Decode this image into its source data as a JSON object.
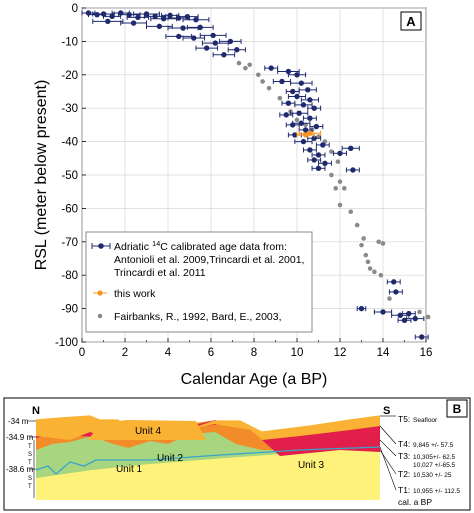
{
  "chart_data": [
    {
      "type": "scatter",
      "panel_label": "A",
      "xlabel": "Calendar Age (a BP)",
      "ylabel": "RSL (meter below present)",
      "xlim": [
        0,
        16
      ],
      "ylim": [
        -100,
        0
      ],
      "xticks": [
        0,
        2,
        4,
        6,
        8,
        10,
        12,
        14,
        16
      ],
      "yticks": [
        0,
        -10,
        -20,
        -30,
        -40,
        -50,
        -60,
        -70,
        -80,
        -90,
        -100
      ],
      "grid": true,
      "legend_position": "lower-left",
      "series": [
        {
          "name": "Adriatic 14C calibrated age data from:",
          "name_parts": [
            "Adriatic ",
            "14",
            "C calibrated age data from:"
          ],
          "name_lines": [
            "Antonioli et al. 2009,Trincardi et al. 2001,",
            "Trincardi et al. 2011"
          ],
          "color": "#1f2a6e",
          "marker": "circle-errorbar",
          "points": [
            {
              "x": 0.3,
              "y": -1.5,
              "xerr": 0.3
            },
            {
              "x": 0.7,
              "y": -2.0,
              "xerr": 0.4
            },
            {
              "x": 1.0,
              "y": -1.8,
              "xerr": 0.5
            },
            {
              "x": 1.4,
              "y": -2.5,
              "xerr": 0.4
            },
            {
              "x": 1.8,
              "y": -1.5,
              "xerr": 0.4
            },
            {
              "x": 2.2,
              "y": -2.0,
              "xerr": 0.5
            },
            {
              "x": 2.6,
              "y": -2.8,
              "xerr": 0.5
            },
            {
              "x": 3.0,
              "y": -1.8,
              "xerr": 0.6
            },
            {
              "x": 3.4,
              "y": -2.5,
              "xerr": 0.5
            },
            {
              "x": 3.8,
              "y": -3.2,
              "xerr": 0.6
            },
            {
              "x": 4.1,
              "y": -2.2,
              "xerr": 0.4
            },
            {
              "x": 4.5,
              "y": -3.0,
              "xerr": 0.5
            },
            {
              "x": 4.9,
              "y": -2.6,
              "xerr": 0.5
            },
            {
              "x": 5.3,
              "y": -3.5,
              "xerr": 0.6
            },
            {
              "x": 1.2,
              "y": -4.0,
              "xerr": 0.7
            },
            {
              "x": 2.4,
              "y": -4.5,
              "xerr": 0.6
            },
            {
              "x": 3.6,
              "y": -5.5,
              "xerr": 0.6
            },
            {
              "x": 4.7,
              "y": -6.0,
              "xerr": 0.7
            },
            {
              "x": 5.5,
              "y": -5.8,
              "xerr": 0.6
            },
            {
              "x": 4.5,
              "y": -8.5,
              "xerr": 0.6
            },
            {
              "x": 5.2,
              "y": -9.0,
              "xerr": 0.5
            },
            {
              "x": 6.1,
              "y": -8.2,
              "xerr": 0.6
            },
            {
              "x": 6.2,
              "y": -10.5,
              "xerr": 0.6
            },
            {
              "x": 6.9,
              "y": -10.0,
              "xerr": 0.5
            },
            {
              "x": 5.8,
              "y": -12.0,
              "xerr": 0.5
            },
            {
              "x": 7.2,
              "y": -12.5,
              "xerr": 0.4
            },
            {
              "x": 6.6,
              "y": -14.0,
              "xerr": 0.5
            },
            {
              "x": 8.8,
              "y": -18.0,
              "xerr": 0.3
            },
            {
              "x": 9.6,
              "y": -19.0,
              "xerr": 0.5
            },
            {
              "x": 10.0,
              "y": -20.0,
              "xerr": 0.4
            },
            {
              "x": 9.3,
              "y": -22.0,
              "xerr": 0.4
            },
            {
              "x": 10.2,
              "y": -22.5,
              "xerr": 0.5
            },
            {
              "x": 10.5,
              "y": -24.5,
              "xerr": 0.4
            },
            {
              "x": 9.8,
              "y": -25.0,
              "xerr": 0.3
            },
            {
              "x": 10.0,
              "y": -26.5,
              "xerr": 0.4
            },
            {
              "x": 10.6,
              "y": -27.5,
              "xerr": 0.4
            },
            {
              "x": 9.6,
              "y": -28.5,
              "xerr": 0.3
            },
            {
              "x": 10.3,
              "y": -29.0,
              "xerr": 0.4
            },
            {
              "x": 10.8,
              "y": -30.0,
              "xerr": 0.3
            },
            {
              "x": 10.1,
              "y": -31.5,
              "xerr": 0.4
            },
            {
              "x": 9.5,
              "y": -32.0,
              "xerr": 0.3
            },
            {
              "x": 10.6,
              "y": -33.0,
              "xerr": 0.3
            },
            {
              "x": 10.2,
              "y": -34.5,
              "xerr": 0.4
            },
            {
              "x": 9.8,
              "y": -35.0,
              "xerr": 0.3
            },
            {
              "x": 10.9,
              "y": -35.5,
              "xerr": 0.3
            },
            {
              "x": 10.4,
              "y": -36.5,
              "xerr": 0.3
            },
            {
              "x": 9.9,
              "y": -38.0,
              "xerr": 0.3
            },
            {
              "x": 10.8,
              "y": -39.0,
              "xerr": 0.3
            },
            {
              "x": 10.3,
              "y": -40.0,
              "xerr": 0.4
            },
            {
              "x": 11.2,
              "y": -41.0,
              "xerr": 0.3
            },
            {
              "x": 10.6,
              "y": -42.5,
              "xerr": 0.3
            },
            {
              "x": 12.5,
              "y": -42.0,
              "xerr": 0.4
            },
            {
              "x": 11.0,
              "y": -44.0,
              "xerr": 0.3
            },
            {
              "x": 12.0,
              "y": -43.5,
              "xerr": 0.3
            },
            {
              "x": 10.8,
              "y": -45.5,
              "xerr": 0.3
            },
            {
              "x": 11.3,
              "y": -46.5,
              "xerr": 0.3
            },
            {
              "x": 11.0,
              "y": -48.0,
              "xerr": 0.3
            },
            {
              "x": 12.6,
              "y": -48.5,
              "xerr": 0.3
            },
            {
              "x": 13.0,
              "y": -90.0,
              "xerr": 0.2
            },
            {
              "x": 14.5,
              "y": -82.0,
              "xerr": 0.3
            },
            {
              "x": 14.6,
              "y": -85.0,
              "xerr": 0.3
            },
            {
              "x": 14.0,
              "y": -91.0,
              "xerr": 0.4
            },
            {
              "x": 14.8,
              "y": -92.0,
              "xerr": 0.4
            },
            {
              "x": 15.2,
              "y": -91.5,
              "xerr": 0.3
            },
            {
              "x": 15.5,
              "y": -93.0,
              "xerr": 0.4
            },
            {
              "x": 15.0,
              "y": -93.5,
              "xerr": 0.3
            },
            {
              "x": 15.8,
              "y": -98.5,
              "xerr": 0.3
            }
          ]
        },
        {
          "name": "this work",
          "color": "#f7941d",
          "marker": "circle-errorbar",
          "points": [
            {
              "x": 10.6,
              "y": -37.5,
              "xerr": 0.5
            },
            {
              "x": 10.4,
              "y": -38.0,
              "xerr": 0.4
            }
          ]
        },
        {
          "name": "Fairbanks, R., 1992, Bard, E., 2003,",
          "color": "#8a8a8a",
          "marker": "dot",
          "points": [
            {
              "x": 7.8,
              "y": -17.0
            },
            {
              "x": 7.6,
              "y": -18.0
            },
            {
              "x": 7.3,
              "y": -16.5
            },
            {
              "x": 8.2,
              "y": -20.0
            },
            {
              "x": 8.4,
              "y": -22.0
            },
            {
              "x": 8.7,
              "y": -24.0
            },
            {
              "x": 9.2,
              "y": -27.0
            },
            {
              "x": 9.7,
              "y": -31.0
            },
            {
              "x": 10.0,
              "y": -33.5
            },
            {
              "x": 10.4,
              "y": -35.0
            },
            {
              "x": 10.7,
              "y": -36.5
            },
            {
              "x": 11.0,
              "y": -38.5
            },
            {
              "x": 11.3,
              "y": -40.0
            },
            {
              "x": 11.6,
              "y": -43.0
            },
            {
              "x": 11.9,
              "y": -46.0
            },
            {
              "x": 11.6,
              "y": -50.0
            },
            {
              "x": 12.0,
              "y": -52.0
            },
            {
              "x": 11.8,
              "y": -54.0
            },
            {
              "x": 12.2,
              "y": -54.0
            },
            {
              "x": 12.0,
              "y": -59.0
            },
            {
              "x": 12.5,
              "y": -61.0
            },
            {
              "x": 12.8,
              "y": -65.0
            },
            {
              "x": 13.1,
              "y": -69.0
            },
            {
              "x": 13.0,
              "y": -71.0
            },
            {
              "x": 13.2,
              "y": -74.0
            },
            {
              "x": 13.3,
              "y": -76.0
            },
            {
              "x": 13.4,
              "y": -78.0
            },
            {
              "x": 13.6,
              "y": -79.0
            },
            {
              "x": 13.8,
              "y": -70.0
            },
            {
              "x": 14.0,
              "y": -70.5
            },
            {
              "x": 13.9,
              "y": -80.0
            },
            {
              "x": 14.3,
              "y": -87.0
            },
            {
              "x": 15.7,
              "y": -91.0
            },
            {
              "x": 16.1,
              "y": -92.5
            }
          ]
        }
      ]
    },
    {
      "type": "diagram",
      "panel_label": "B",
      "left_label": "N",
      "right_label": "S",
      "depth_labels": [
        "-34 m",
        "-34.9 m",
        "-38.6 m"
      ],
      "tract_labels": [
        "T",
        "S",
        "T",
        "S",
        "T"
      ],
      "units": [
        "Unit 4",
        "Unit 2",
        "Unit 1",
        "Unit 3"
      ],
      "surfaces": [
        {
          "code": "T5:",
          "text": "Seafloor",
          "text2": ""
        },
        {
          "code": "T4:",
          "text": "9,845 +/- 57.5",
          "text2": ""
        },
        {
          "code": "T3:",
          "text": "10,305+/- 62.5",
          "text2": "10,027 +/-65.5"
        },
        {
          "code": "T2:",
          "text": "10,530 +/- 25",
          "text2": ""
        },
        {
          "code": "T1:",
          "text": "10,955 +/- 112.5",
          "text2": ""
        }
      ],
      "age_axis_label": "cal. a BP",
      "colors": {
        "unit4": "#f9b233",
        "unit3": "#e21f4a",
        "unit2": "#f28c28",
        "unit1": "#a8d580",
        "base": "#fff27a",
        "t1_line": "#3aa5c9"
      }
    }
  ]
}
